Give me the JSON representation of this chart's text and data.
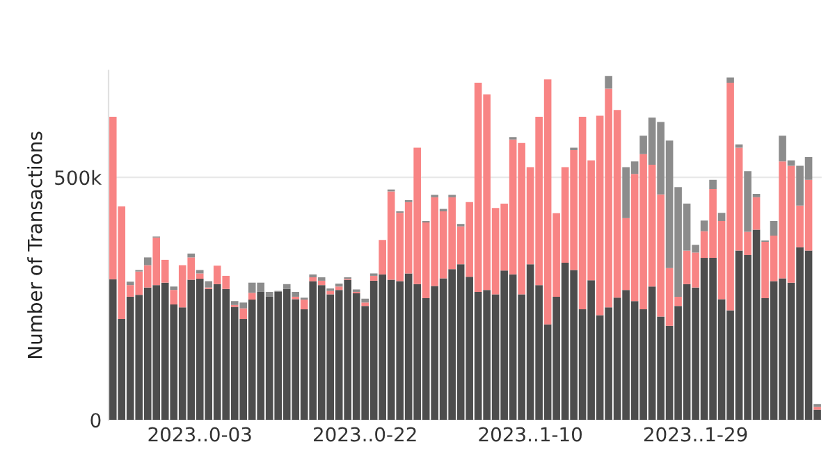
{
  "chart_data": {
    "type": "bar",
    "stacked": true,
    "ylabel": "Number of Transactions",
    "categories": [
      null,
      null,
      null,
      null,
      null,
      null,
      null,
      null,
      null,
      null,
      "2023..0-03",
      null,
      null,
      null,
      null,
      null,
      null,
      null,
      null,
      null,
      null,
      null,
      null,
      null,
      null,
      null,
      null,
      null,
      null,
      "2023..0-22",
      null,
      null,
      null,
      null,
      null,
      null,
      null,
      null,
      null,
      null,
      null,
      null,
      null,
      null,
      null,
      null,
      null,
      null,
      "2023..1-10",
      null,
      null,
      null,
      null,
      null,
      null,
      null,
      null,
      null,
      null,
      null,
      null,
      null,
      null,
      null,
      null,
      null,
      null,
      "2023..1-29",
      null,
      null,
      null,
      null,
      null,
      null,
      null,
      null,
      null,
      null,
      null,
      null,
      null,
      null
    ],
    "series": [
      {
        "color": "#4d4d4d",
        "values": [
          290,
          208,
          254,
          258,
          273,
          278,
          283,
          238,
          232,
          289,
          291,
          270,
          280,
          270,
          233,
          208,
          248,
          264,
          254,
          264,
          270,
          249,
          228,
          286,
          278,
          259,
          268,
          289,
          261,
          235,
          287,
          300,
          289,
          286,
          302,
          280,
          251,
          276,
          292,
          311,
          321,
          295,
          264,
          268,
          259,
          308,
          300,
          259,
          321,
          278,
          197,
          254,
          324,
          309,
          228,
          288,
          216,
          232,
          252,
          268,
          245,
          228,
          275,
          213,
          194,
          235,
          280,
          273,
          334,
          334,
          249,
          226,
          349,
          340,
          392,
          251,
          286,
          292,
          283,
          356,
          349,
          21
        ]
      },
      {
        "color": "#f88484",
        "values": [
          335,
          232,
          24,
          48,
          46,
          98,
          47,
          30,
          87,
          46,
          11,
          3,
          38,
          27,
          4,
          22,
          14,
          0,
          0,
          0,
          0,
          5,
          20,
          8,
          9,
          7,
          7,
          2,
          3,
          7,
          10,
          71,
          182,
          141,
          147,
          281,
          156,
          183,
          138,
          148,
          78,
          154,
          431,
          403,
          178,
          138,
          278,
          312,
          200,
          347,
          505,
          172,
          197,
          247,
          397,
          247,
          411,
          451,
          387,
          148,
          262,
          320,
          251,
          252,
          119,
          19,
          69,
          72,
          55,
          142,
          161,
          469,
          212,
          48,
          67,
          116,
          94,
          241,
          241,
          86,
          146,
          6
        ]
      },
      {
        "color": "#8c8c8c",
        "values": [
          0,
          0,
          7,
          3,
          16,
          2,
          0,
          7,
          0,
          8,
          7,
          13,
          0,
          0,
          8,
          12,
          21,
          19,
          10,
          2,
          10,
          10,
          4,
          6,
          7,
          5,
          6,
          3,
          5,
          8,
          5,
          0,
          4,
          3,
          4,
          0,
          3,
          5,
          5,
          5,
          5,
          0,
          0,
          0,
          0,
          0,
          5,
          0,
          0,
          0,
          0,
          0,
          0,
          5,
          0,
          0,
          0,
          26,
          0,
          105,
          26,
          38,
          97,
          149,
          263,
          226,
          97,
          16,
          22,
          19,
          17,
          11,
          7,
          125,
          7,
          3,
          30,
          53,
          11,
          82,
          47,
          6
        ]
      }
    ],
    "ylim": [
      0,
      720
    ],
    "yticks": [
      0,
      {
        "value": 500,
        "label": "500k"
      }
    ],
    "grid": "y"
  }
}
